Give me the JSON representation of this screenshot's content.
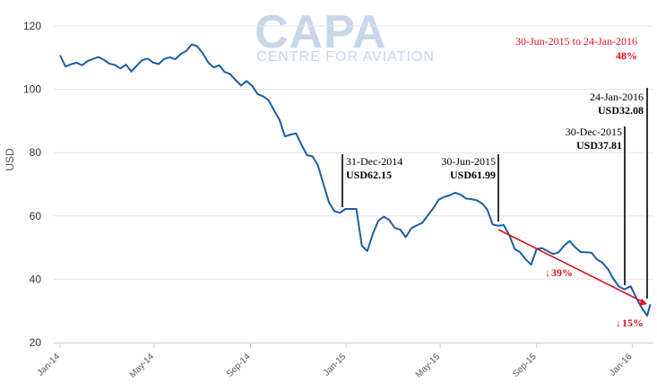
{
  "watermark": {
    "main": "CAPA",
    "sub": "CENTRE FOR AVIATION"
  },
  "chart_data": {
    "type": "line",
    "xlabel": "",
    "ylabel": "USD",
    "ylim": [
      20,
      120
    ],
    "yticks": [
      20,
      40,
      60,
      80,
      100,
      120
    ],
    "xticks": [
      "Jan-14",
      "May-14",
      "Sep-14",
      "Jan-15",
      "May-15",
      "Sep-15",
      "Jan-16"
    ],
    "grid": "horizontal",
    "line_color": "#1a5ea6",
    "series": [
      {
        "x": [
          "2014-01-01",
          "2014-01-08",
          "2014-01-15",
          "2014-01-22",
          "2014-01-29",
          "2014-02-05",
          "2014-02-12",
          "2014-02-19",
          "2014-02-26",
          "2014-03-05",
          "2014-03-12",
          "2014-03-19",
          "2014-03-26",
          "2014-04-02",
          "2014-04-09",
          "2014-04-16",
          "2014-04-23",
          "2014-04-30",
          "2014-05-07",
          "2014-05-14",
          "2014-05-21",
          "2014-05-28",
          "2014-06-04",
          "2014-06-11",
          "2014-06-18",
          "2014-06-25",
          "2014-07-02",
          "2014-07-09",
          "2014-07-16",
          "2014-07-23",
          "2014-07-30",
          "2014-08-06",
          "2014-08-13",
          "2014-08-20",
          "2014-08-27",
          "2014-09-03",
          "2014-09-10",
          "2014-09-17",
          "2014-09-24",
          "2014-10-01",
          "2014-10-08",
          "2014-10-15",
          "2014-10-22",
          "2014-10-29",
          "2014-11-05",
          "2014-11-12",
          "2014-11-19",
          "2014-11-26",
          "2014-12-03",
          "2014-12-10",
          "2014-12-17",
          "2014-12-24",
          "2014-12-31",
          "2015-01-07",
          "2015-01-14",
          "2015-01-21",
          "2015-01-28",
          "2015-02-04",
          "2015-02-11",
          "2015-02-18",
          "2015-02-25",
          "2015-03-04",
          "2015-03-11",
          "2015-03-18",
          "2015-03-25",
          "2015-04-01",
          "2015-04-08",
          "2015-04-15",
          "2015-04-22",
          "2015-04-29",
          "2015-05-06",
          "2015-05-13",
          "2015-05-20",
          "2015-05-27",
          "2015-06-03",
          "2015-06-10",
          "2015-06-17",
          "2015-06-24",
          "2015-06-30",
          "2015-07-07",
          "2015-07-14",
          "2015-07-21",
          "2015-07-28",
          "2015-08-04",
          "2015-08-11",
          "2015-08-18",
          "2015-08-25",
          "2015-09-01",
          "2015-09-08",
          "2015-09-15",
          "2015-09-22",
          "2015-09-29",
          "2015-10-06",
          "2015-10-13",
          "2015-10-20",
          "2015-10-27",
          "2015-11-03",
          "2015-11-10",
          "2015-11-17",
          "2015-11-24",
          "2015-12-01",
          "2015-12-08",
          "2015-12-15",
          "2015-12-22",
          "2015-12-30",
          "2016-01-06",
          "2016-01-13",
          "2016-01-20",
          "2016-01-24"
        ],
        "values": [
          110.8,
          107.2,
          107.9,
          108.4,
          107.6,
          108.9,
          109.6,
          110.2,
          109.3,
          108.1,
          107.7,
          106.6,
          107.8,
          105.6,
          107.5,
          109.3,
          109.7,
          108.4,
          108.0,
          109.6,
          110.1,
          109.5,
          111.2,
          112.1,
          114.2,
          113.6,
          111.4,
          108.5,
          106.9,
          107.6,
          105.5,
          104.8,
          102.9,
          101.2,
          102.6,
          101.1,
          98.5,
          97.8,
          96.6,
          93.4,
          90.3,
          85.1,
          85.7,
          86.1,
          82.5,
          79.2,
          78.8,
          76.0,
          70.1,
          64.3,
          61.5,
          61.0,
          62.2,
          62.2,
          62.2,
          50.6,
          48.9,
          54.3,
          58.4,
          59.8,
          58.7,
          56.2,
          55.7,
          53.3,
          56.1,
          57.0,
          57.8,
          60.1,
          62.4,
          65.1,
          66.0,
          66.5,
          67.3,
          66.7,
          65.5,
          65.3,
          64.9,
          63.8,
          62.0,
          57.3,
          56.9,
          57.1,
          54.0,
          49.6,
          48.5,
          46.3,
          44.6,
          49.6,
          49.8,
          48.9,
          48.0,
          48.5,
          50.6,
          52.1,
          50.2,
          48.6,
          48.5,
          48.4,
          46.3,
          45.2,
          43.2,
          40.1,
          37.7,
          36.8,
          37.8,
          34.2,
          31.0,
          28.5,
          32.1
        ]
      }
    ],
    "annotations": [
      {
        "date": "31-Dec-2014",
        "value": "USD62.15"
      },
      {
        "date": "30-Jun-2015",
        "value": "USD61.99"
      },
      {
        "date": "30-Dec-2015",
        "value": "USD37.81"
      },
      {
        "date": "24-Jan-2016",
        "value": "USD32.08"
      }
    ],
    "period_label": "30-Jun-2015 to 24-Jan-2016",
    "period_change": "48%",
    "drop_1": "39%",
    "drop_2": "15%",
    "accent_color": "#e0101e"
  }
}
